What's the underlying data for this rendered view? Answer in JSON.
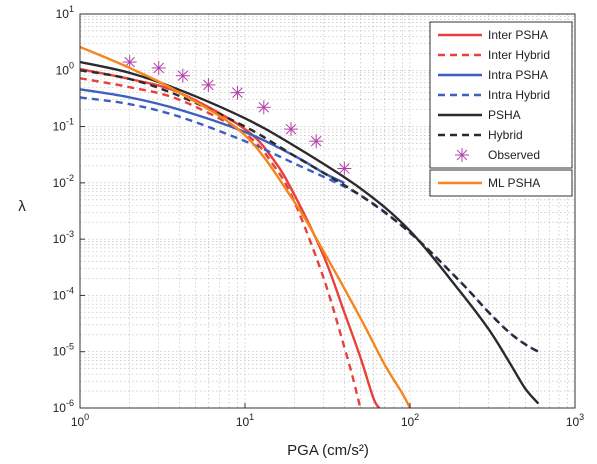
{
  "chart_data": {
    "type": "line",
    "title": "",
    "xlabel": "PGA (cm/s²)",
    "ylabel": "λ",
    "x_scale": "log",
    "y_scale": "log",
    "xlim": [
      1,
      1000
    ],
    "ylim": [
      1e-06,
      10
    ],
    "grid": true,
    "legend_position": "top-right",
    "x_tick_labels": [
      {
        "base": "10",
        "exp": "0"
      },
      {
        "base": "10",
        "exp": "1"
      },
      {
        "base": "10",
        "exp": "2"
      },
      {
        "base": "10",
        "exp": "3"
      }
    ],
    "y_tick_labels": [
      {
        "base": "10",
        "exp": "1"
      },
      {
        "base": "10",
        "exp": "0"
      },
      {
        "base": "10",
        "exp": "-1"
      },
      {
        "base": "10",
        "exp": "-2"
      },
      {
        "base": "10",
        "exp": "-3"
      },
      {
        "base": "10",
        "exp": "-4"
      },
      {
        "base": "10",
        "exp": "-5"
      },
      {
        "base": "10",
        "exp": "-6"
      }
    ],
    "series": [
      {
        "name": "Inter PSHA",
        "color": "#e8403a",
        "dash": "solid",
        "x": [
          1,
          2,
          4,
          10,
          15,
          20,
          30,
          40,
          50,
          60,
          65
        ],
        "y": [
          1.05,
          0.7,
          0.4,
          0.09,
          0.025,
          0.006,
          0.0005,
          5e-05,
          8e-06,
          1.5e-06,
          1e-06
        ]
      },
      {
        "name": "Inter Hybrid",
        "color": "#e8403a",
        "dash": "dashed",
        "x": [
          1,
          2,
          4,
          10,
          15,
          20,
          30,
          40,
          45,
          50
        ],
        "y": [
          0.72,
          0.5,
          0.3,
          0.075,
          0.02,
          0.0045,
          0.0002,
          1.2e-05,
          3.5e-06,
          1e-06
        ]
      },
      {
        "name": "Intra PSHA",
        "color": "#3e5fbf",
        "dash": "solid",
        "x": [
          1,
          2,
          4,
          10,
          20,
          30,
          40
        ],
        "y": [
          0.46,
          0.33,
          0.2,
          0.08,
          0.03,
          0.015,
          0.01
        ]
      },
      {
        "name": "Intra Hybrid",
        "color": "#3e5fbf",
        "dash": "dashed",
        "x": [
          1,
          2,
          4,
          10,
          20,
          50,
          100,
          200,
          300,
          400,
          500,
          600
        ],
        "y": [
          0.33,
          0.25,
          0.15,
          0.055,
          0.022,
          0.006,
          0.0013,
          0.00018,
          5e-05,
          2.2e-05,
          1.35e-05,
          1e-05
        ]
      },
      {
        "name": "PSHA",
        "color": "#2b2b2b",
        "dash": "solid",
        "x": [
          1,
          2,
          4,
          10,
          20,
          50,
          100,
          200,
          300,
          400,
          500,
          600
        ],
        "y": [
          1.4,
          0.9,
          0.45,
          0.14,
          0.045,
          0.008,
          0.0014,
          0.00012,
          2.5e-05,
          6.5e-06,
          2.2e-06,
          1.2e-06
        ]
      },
      {
        "name": "Hybrid",
        "color": "#2b2b2b",
        "dash": "dashed",
        "x": [
          1,
          2,
          4,
          10,
          20,
          50,
          100,
          200,
          300,
          400,
          500,
          600
        ],
        "y": [
          1.0,
          0.7,
          0.35,
          0.1,
          0.03,
          0.006,
          0.0013,
          0.00018,
          5e-05,
          2.2e-05,
          1.35e-05,
          1e-05
        ]
      },
      {
        "name": "Observed",
        "color": "#b040a8",
        "marker": "asterisk",
        "x": [
          2,
          3,
          4.2,
          6,
          9,
          13,
          19,
          27,
          40
        ],
        "y": [
          1.4,
          1.1,
          0.8,
          0.55,
          0.4,
          0.22,
          0.09,
          0.055,
          0.018
        ]
      },
      {
        "name": "ML PSHA",
        "color": "#f5861f",
        "dash": "solid",
        "x": [
          1,
          2,
          4,
          10,
          20,
          30,
          50,
          70,
          90,
          100
        ],
        "y": [
          2.6,
          1.1,
          0.4,
          0.07,
          0.0045,
          0.0006,
          4e-05,
          6e-06,
          1.8e-06,
          1e-06
        ]
      }
    ]
  }
}
